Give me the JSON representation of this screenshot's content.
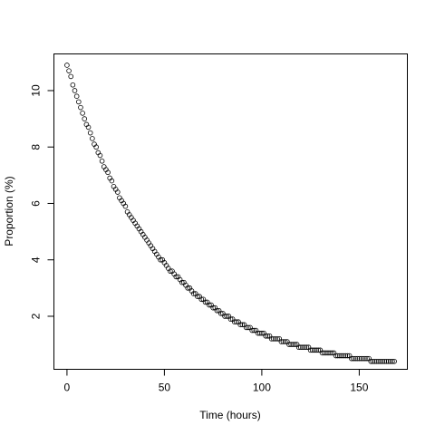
{
  "chart_data": {
    "type": "scatter",
    "title": "",
    "xlabel": "Time (hours)",
    "ylabel": "Proportion (%)",
    "xlim": [
      -6.7,
      174.7
    ],
    "ylim": [
      0.12,
      11.3
    ],
    "x_ticks": [
      0,
      50,
      100,
      150
    ],
    "y_ticks": [
      2,
      4,
      6,
      8,
      10
    ],
    "grid": false,
    "legend": "none",
    "marker": "open-circle",
    "marker_color": "#000000",
    "series": [
      {
        "x": [
          0,
          1,
          2,
          3,
          4,
          5,
          6,
          7,
          8,
          9,
          10,
          11,
          12,
          13,
          14,
          15,
          16,
          17,
          18,
          19,
          20,
          21,
          22,
          23,
          24,
          25,
          26,
          27,
          28,
          29,
          30,
          31,
          32,
          33,
          34,
          35,
          36,
          37,
          38,
          39,
          40,
          41,
          42,
          43,
          44,
          45,
          46,
          47,
          48,
          49,
          50,
          51,
          52,
          53,
          54,
          55,
          56,
          57,
          58,
          59,
          60,
          61,
          62,
          63,
          64,
          65,
          66,
          67,
          68,
          69,
          70,
          71,
          72,
          73,
          74,
          75,
          76,
          77,
          78,
          79,
          80,
          81,
          82,
          83,
          84,
          85,
          86,
          87,
          88,
          89,
          90,
          91,
          92,
          93,
          94,
          95,
          96,
          97,
          98,
          99,
          100,
          101,
          102,
          103,
          104,
          105,
          106,
          107,
          108,
          109,
          110,
          111,
          112,
          113,
          114,
          115,
          116,
          117,
          118,
          119,
          120,
          121,
          122,
          123,
          124,
          125,
          126,
          127,
          128,
          129,
          130,
          131,
          132,
          133,
          134,
          135,
          136,
          137,
          138,
          139,
          140,
          141,
          142,
          143,
          144,
          145,
          146,
          147,
          148,
          149,
          150,
          151,
          152,
          153,
          154,
          155,
          156,
          157,
          158,
          159,
          160,
          161,
          162,
          163,
          164,
          165,
          166,
          167,
          168
        ],
        "y": [
          10.9,
          10.7,
          10.5,
          10.2,
          10.0,
          9.8,
          9.6,
          9.4,
          9.2,
          9.0,
          8.8,
          8.7,
          8.5,
          8.3,
          8.1,
          8.0,
          7.8,
          7.7,
          7.5,
          7.3,
          7.2,
          7.1,
          6.9,
          6.8,
          6.6,
          6.5,
          6.4,
          6.2,
          6.1,
          6.0,
          5.9,
          5.7,
          5.6,
          5.5,
          5.4,
          5.3,
          5.2,
          5.1,
          5.0,
          4.9,
          4.8,
          4.7,
          4.6,
          4.5,
          4.4,
          4.3,
          4.2,
          4.1,
          4.0,
          4.0,
          3.9,
          3.8,
          3.7,
          3.6,
          3.6,
          3.5,
          3.4,
          3.4,
          3.3,
          3.2,
          3.2,
          3.1,
          3.0,
          3.0,
          2.9,
          2.8,
          2.8,
          2.7,
          2.7,
          2.6,
          2.6,
          2.5,
          2.5,
          2.4,
          2.4,
          2.3,
          2.3,
          2.2,
          2.2,
          2.1,
          2.1,
          2.0,
          2.0,
          2.0,
          1.9,
          1.9,
          1.8,
          1.8,
          1.8,
          1.7,
          1.7,
          1.7,
          1.6,
          1.6,
          1.6,
          1.5,
          1.5,
          1.5,
          1.4,
          1.4,
          1.4,
          1.4,
          1.3,
          1.3,
          1.3,
          1.2,
          1.2,
          1.2,
          1.2,
          1.2,
          1.1,
          1.1,
          1.1,
          1.1,
          1.0,
          1.0,
          1.0,
          1.0,
          1.0,
          0.9,
          0.9,
          0.9,
          0.9,
          0.9,
          0.9,
          0.8,
          0.8,
          0.8,
          0.8,
          0.8,
          0.8,
          0.7,
          0.7,
          0.7,
          0.7,
          0.7,
          0.7,
          0.7,
          0.6,
          0.6,
          0.6,
          0.6,
          0.6,
          0.6,
          0.6,
          0.6,
          0.5,
          0.5,
          0.5,
          0.5,
          0.5,
          0.5,
          0.5,
          0.5,
          0.5,
          0.5,
          0.4,
          0.4,
          0.4,
          0.4,
          0.4,
          0.4,
          0.4,
          0.4,
          0.4,
          0.4,
          0.4,
          0.4,
          0.4
        ]
      }
    ]
  }
}
